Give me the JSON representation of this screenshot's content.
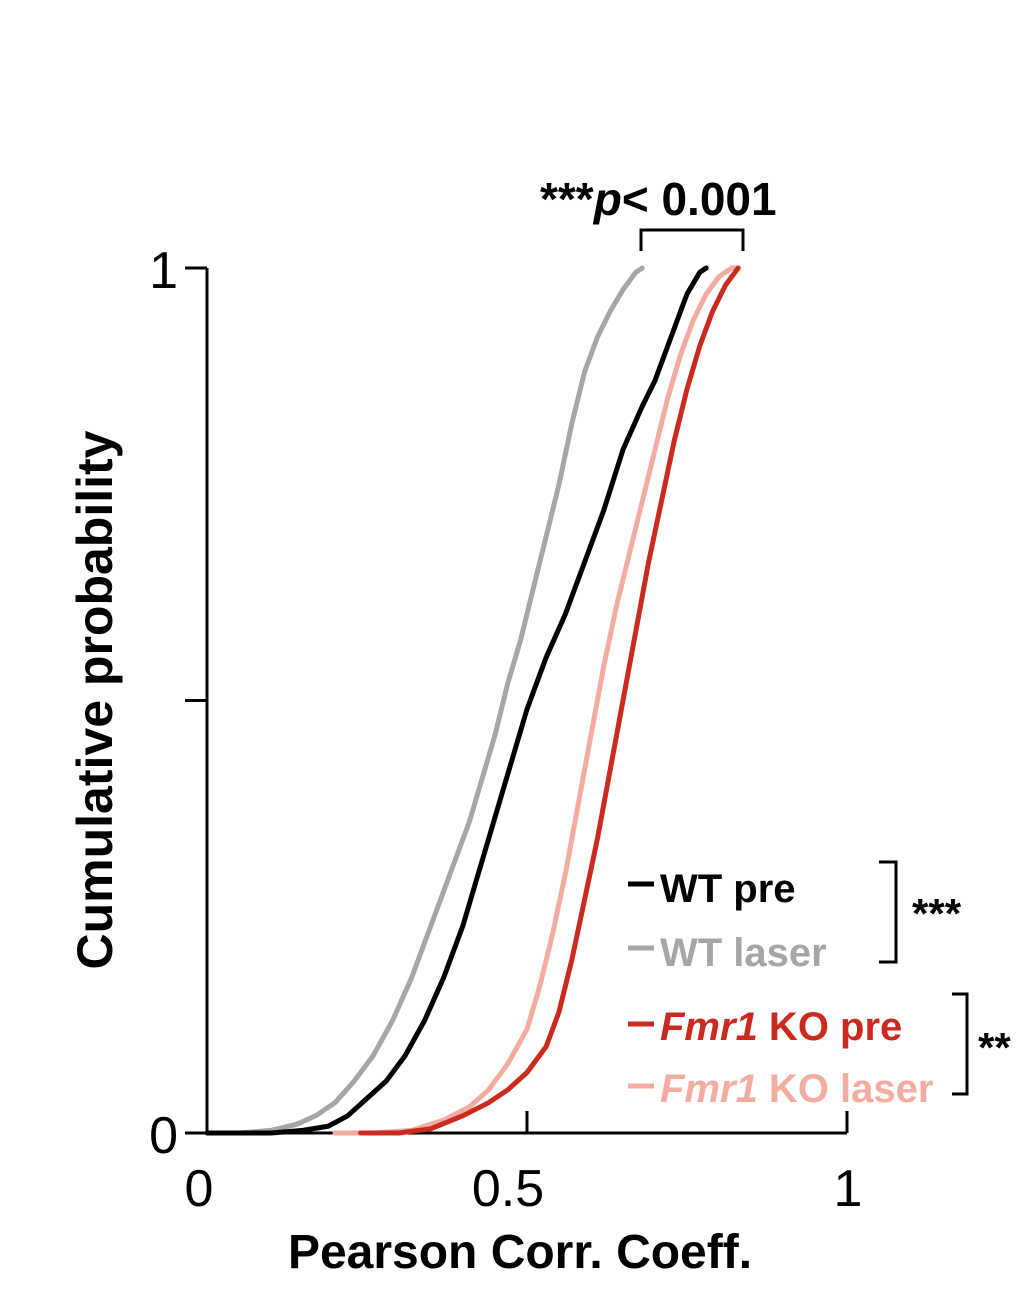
{
  "chart_data": {
    "type": "line",
    "title": "",
    "xlabel": "Pearson Corr. Coeff.",
    "ylabel": "Cumulative probability",
    "xlim": [
      0,
      1
    ],
    "ylim": [
      0,
      1
    ],
    "x_ticks": [
      0,
      0.5,
      1
    ],
    "x_tick_labels": [
      "0",
      "0.5",
      "1"
    ],
    "y_ticks": [
      0,
      0.5,
      1
    ],
    "y_tick_labels": [
      "0",
      "",
      "1"
    ],
    "grid": false,
    "legend_position": "bottom-right",
    "series": [
      {
        "name": "WT pre",
        "name_prefix": "",
        "name_rest": "WT pre",
        "color": "#000000",
        "x": [
          0.0,
          0.1,
          0.15,
          0.19,
          0.22,
          0.25,
          0.28,
          0.31,
          0.34,
          0.37,
          0.4,
          0.42,
          0.44,
          0.46,
          0.48,
          0.5,
          0.53,
          0.56,
          0.59,
          0.62,
          0.65,
          0.68,
          0.7,
          0.72,
          0.74,
          0.75,
          0.77,
          0.78
        ],
        "y": [
          0.0,
          0.0,
          0.003,
          0.008,
          0.02,
          0.04,
          0.06,
          0.09,
          0.13,
          0.18,
          0.24,
          0.29,
          0.34,
          0.39,
          0.44,
          0.49,
          0.55,
          0.6,
          0.66,
          0.72,
          0.79,
          0.84,
          0.87,
          0.91,
          0.95,
          0.97,
          0.995,
          1.0
        ]
      },
      {
        "name": "WT laser",
        "name_prefix": "",
        "name_rest": "WT laser",
        "color": "#a6a6a6",
        "x": [
          0.0,
          0.05,
          0.1,
          0.14,
          0.17,
          0.2,
          0.23,
          0.26,
          0.29,
          0.32,
          0.35,
          0.38,
          0.41,
          0.43,
          0.45,
          0.47,
          0.49,
          0.51,
          0.53,
          0.55,
          0.57,
          0.59,
          0.61,
          0.63,
          0.65,
          0.67,
          0.68
        ],
        "y": [
          0.0,
          0.0,
          0.003,
          0.01,
          0.02,
          0.035,
          0.06,
          0.09,
          0.13,
          0.18,
          0.24,
          0.3,
          0.36,
          0.41,
          0.46,
          0.52,
          0.57,
          0.63,
          0.69,
          0.75,
          0.82,
          0.88,
          0.92,
          0.95,
          0.975,
          0.995,
          1.0
        ]
      },
      {
        "name": "Fmr1 KO pre",
        "name_prefix": "Fmr1",
        "name_rest": " KO pre",
        "color": "#cc2a1f",
        "x": [
          0.24,
          0.3,
          0.35,
          0.4,
          0.44,
          0.47,
          0.5,
          0.53,
          0.55,
          0.57,
          0.59,
          0.61,
          0.63,
          0.65,
          0.67,
          0.69,
          0.71,
          0.73,
          0.75,
          0.77,
          0.79,
          0.81,
          0.83
        ],
        "y": [
          0.0,
          0.0,
          0.005,
          0.02,
          0.035,
          0.05,
          0.07,
          0.1,
          0.14,
          0.2,
          0.27,
          0.34,
          0.42,
          0.5,
          0.58,
          0.66,
          0.73,
          0.8,
          0.86,
          0.91,
          0.95,
          0.98,
          1.0
        ]
      },
      {
        "name": "Fmr1 KO laser",
        "name_prefix": "Fmr1",
        "name_rest": " KO laser",
        "color": "#f4aba0",
        "x": [
          0.2,
          0.26,
          0.32,
          0.37,
          0.41,
          0.44,
          0.47,
          0.5,
          0.52,
          0.54,
          0.56,
          0.58,
          0.6,
          0.62,
          0.64,
          0.66,
          0.68,
          0.7,
          0.72,
          0.74,
          0.76,
          0.78,
          0.8,
          0.82,
          0.83
        ],
        "y": [
          0.0,
          0.0,
          0.003,
          0.015,
          0.03,
          0.05,
          0.08,
          0.12,
          0.17,
          0.23,
          0.3,
          0.38,
          0.46,
          0.54,
          0.61,
          0.67,
          0.73,
          0.79,
          0.85,
          0.9,
          0.94,
          0.97,
          0.99,
          1.0,
          1.0
        ]
      }
    ],
    "annotations": {
      "top_stars": "***",
      "top_p": "p",
      "top_rest": "< 0.001",
      "wt_bracket_stars": "***",
      "ko_bracket_stars": "**"
    }
  }
}
